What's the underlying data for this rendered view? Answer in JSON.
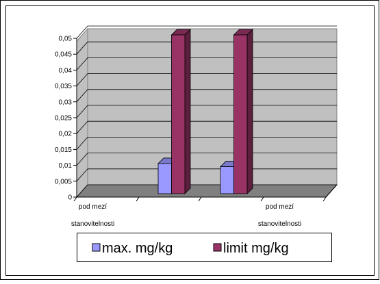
{
  "chart_data": {
    "type": "bar3d",
    "categories": [
      "pod mezí stanovitelnosti",
      null,
      null,
      "pod mezí stanovitelnosti"
    ],
    "series": [
      {
        "name": "max. mg/kg",
        "color": "#9999ff",
        "values": [
          null,
          0.0095,
          0.0085,
          null
        ]
      },
      {
        "name": "limit mg/kg",
        "color": "#993366",
        "values": [
          null,
          0.05,
          0.05,
          null
        ]
      }
    ],
    "ylim": [
      0,
      0.05
    ],
    "yticks": [
      0,
      {
        "value": 0.005,
        "label": "0,005"
      },
      {
        "value": 0.01,
        "label": "0,01"
      },
      {
        "value": 0.015,
        "label": "0,015"
      },
      {
        "value": 0.02,
        "label": "0,02"
      },
      {
        "value": 0.025,
        "label": "0,025"
      },
      {
        "value": 0.03,
        "label": "0,03"
      },
      {
        "value": 0.035,
        "label": "0,035"
      },
      {
        "value": 0.04,
        "label": "0,04"
      },
      {
        "value": 0.045,
        "label": "0,045"
      },
      {
        "value": 0.05,
        "label": "0,05"
      }
    ],
    "grid": true,
    "legend": "bottom"
  }
}
